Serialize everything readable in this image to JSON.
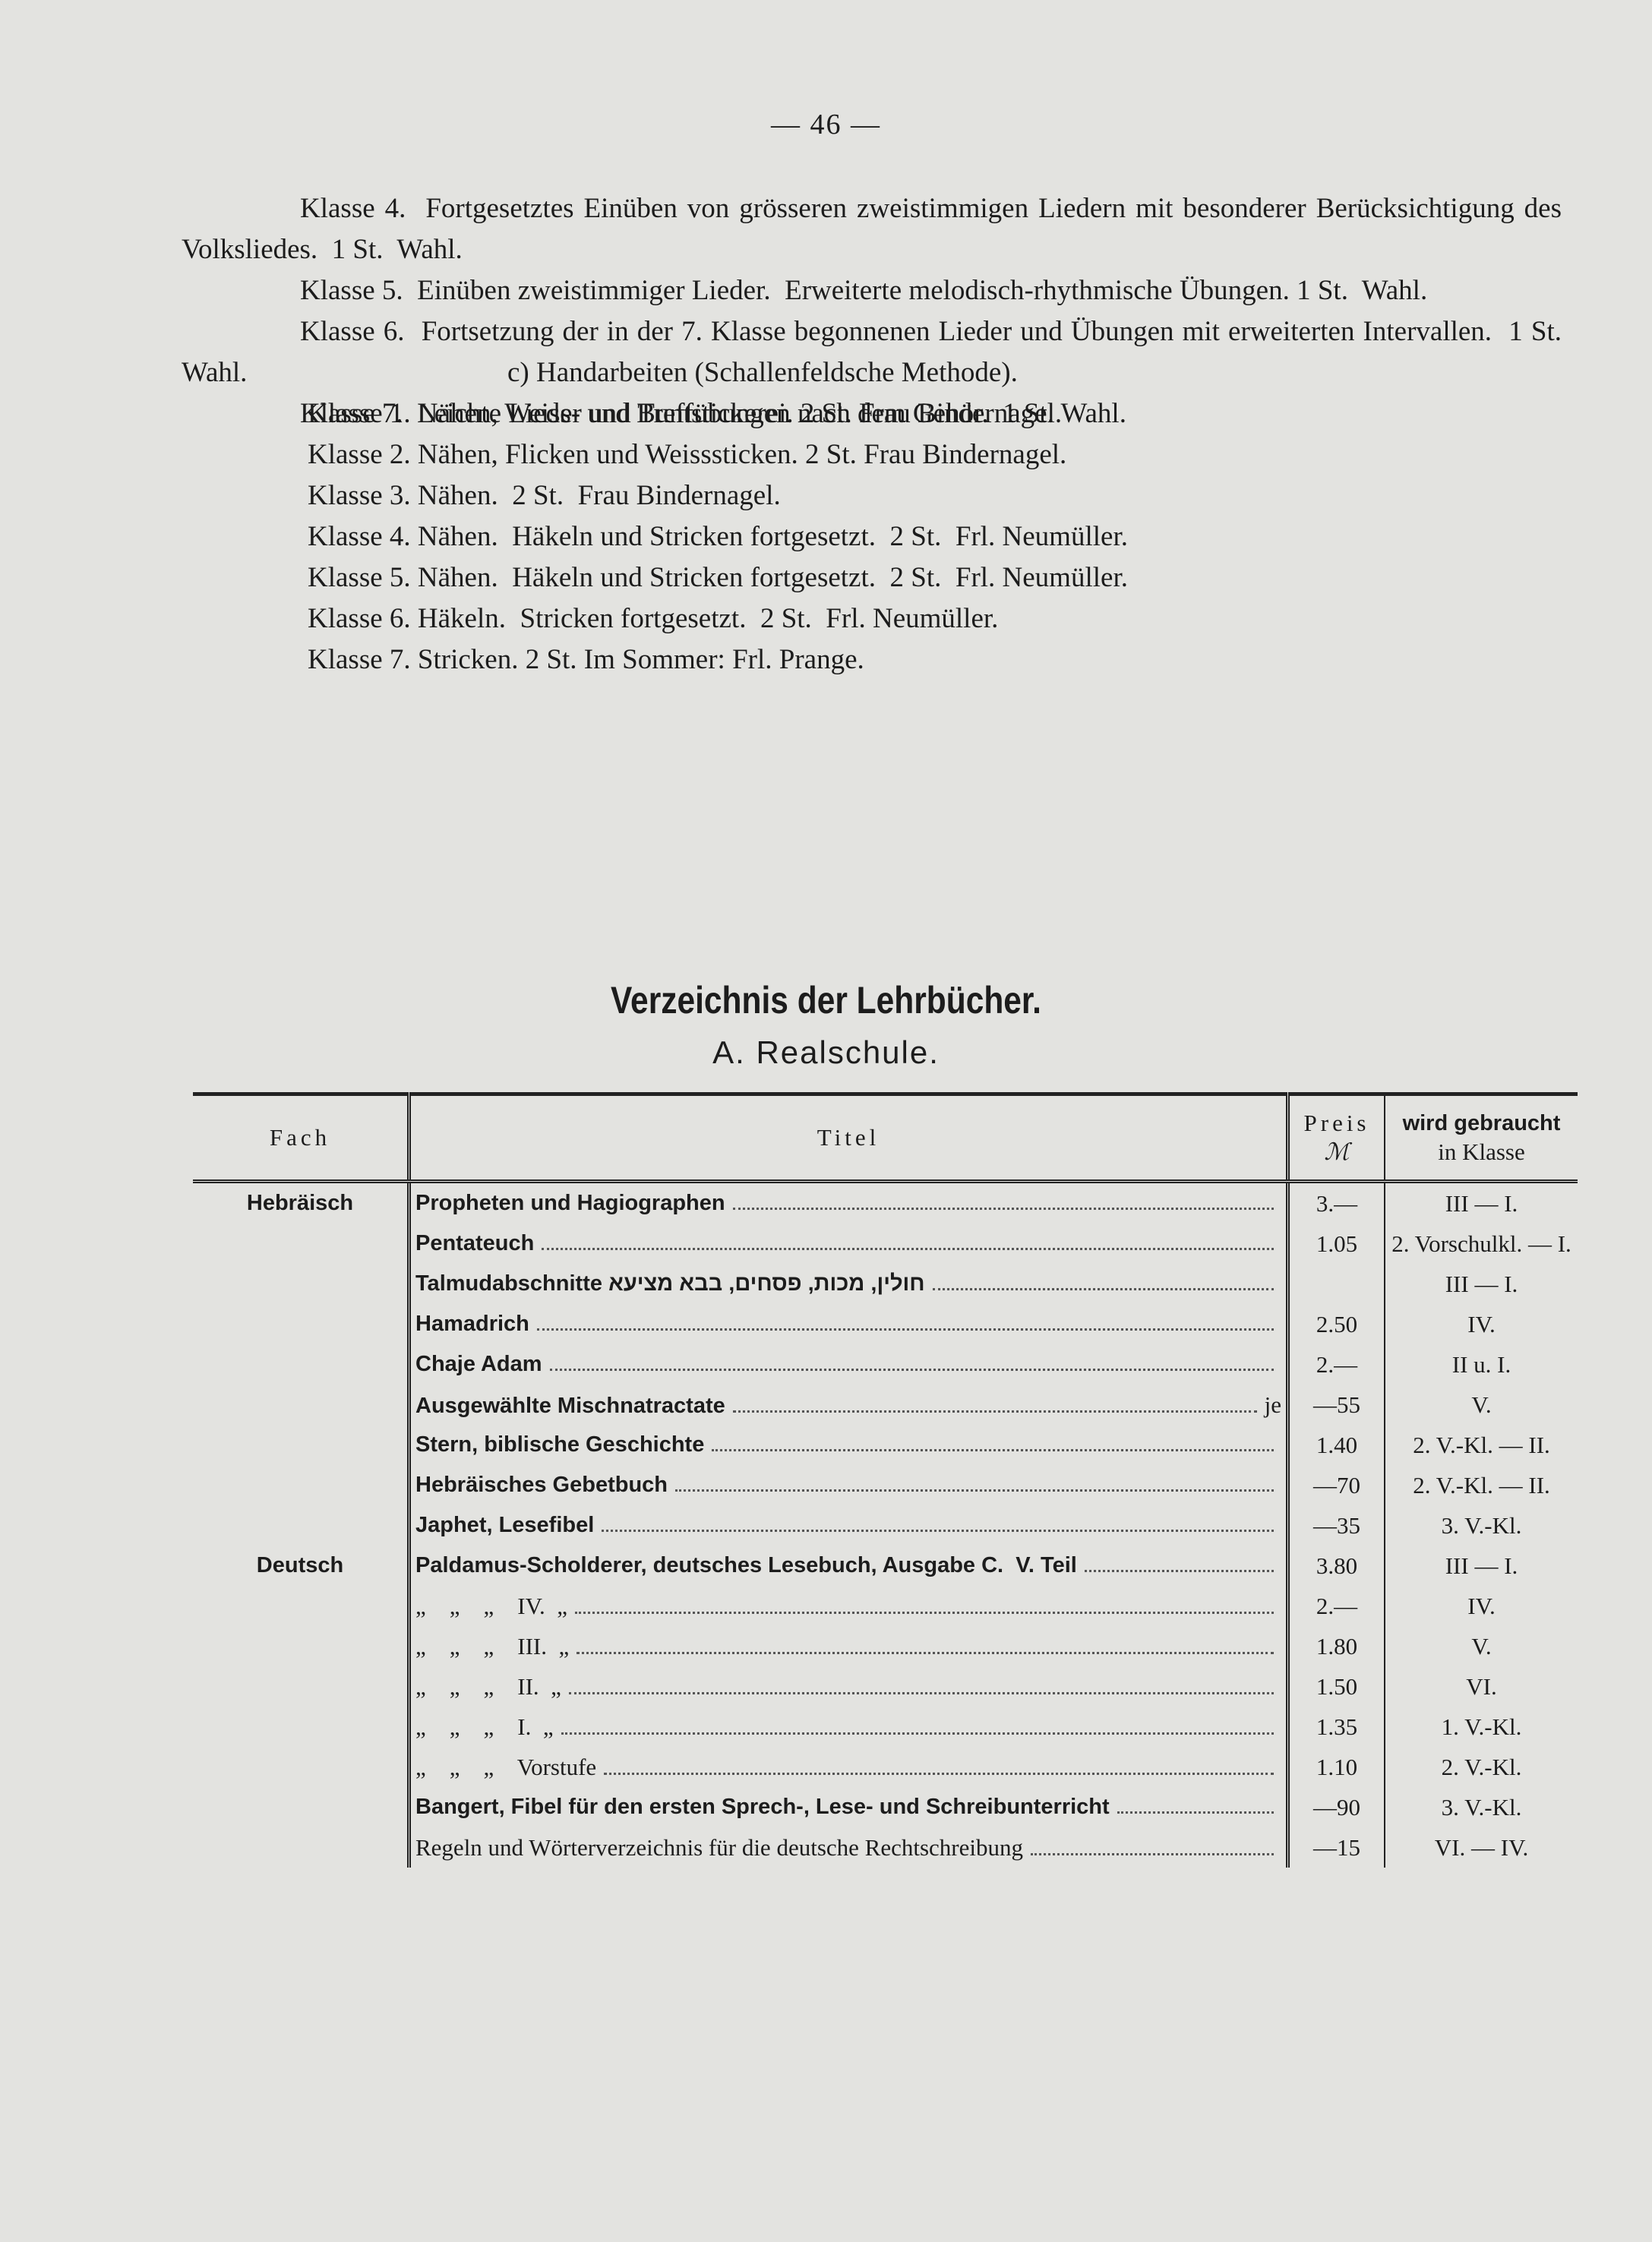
{
  "page_number": "— 46 —",
  "paragraphs": [
    "Klasse 4.  Fortgesetztes Einüben von grösseren zweistimmigen Liedern mit besonderer Berücksichtigung des Volksliedes.  1 St.  Wahl.",
    "Klasse 5.  Einüben zweistimmiger Lieder.  Erweiterte melodisch-rhythmische Übungen. 1 St.  Wahl.",
    "Klasse 6.  Fortsetzung der in der 7. Klasse begonnenen Lieder und Übungen mit erweiterten Intervallen.  1 St.  Wahl.",
    "Klasse 7.  Leichte Lieder und Treffübungen nach dem Gehör.  1 St. Wahl."
  ],
  "handarbeiten": {
    "heading": "c) Handarbeiten (Schallenfeldsche Methode).",
    "lines": [
      "Klasse 1. Nähen, Weiss- und Buntstickerei. 2 St. Frau Bindernagel.",
      "Klasse 2. Nähen, Flicken und Weisssticken. 2 St. Frau Bindernagel.",
      "Klasse 3. Nähen.  2 St.  Frau Bindernagel.",
      "Klasse 4. Nähen.  Häkeln und Stricken fortgesetzt.  2 St.  Frl. Neumüller.",
      "Klasse 5. Nähen.  Häkeln und Stricken fortgesetzt.  2 St.  Frl. Neumüller.",
      "Klasse 6. Häkeln.  Stricken fortgesetzt.  2 St.  Frl. Neumüller.",
      "Klasse 7. Stricken. 2 St. Im Sommer: Frl. Prange."
    ]
  },
  "section_title": "Verzeichnis der Lehrbücher.",
  "section_subtitle": "A. Realschule.",
  "table": {
    "header": {
      "fach": "Fach",
      "titel": "Titel",
      "preis": "Preis",
      "waehrung": "ℳ",
      "klasse": "wird gebraucht",
      "klasse_sub": "in Klasse"
    },
    "groups": [
      {
        "fach": "Hebräisch",
        "rows": [
          {
            "titel": "Propheten und Hagiographen",
            "preis": "3.—",
            "klasse": "III — I."
          },
          {
            "titel": "Pentateuch",
            "preis": "1.05",
            "klasse": "2. Vorschulkl. — I."
          },
          {
            "titel": "Talmudabschnitte חולין, מכות, פסחים, בבא מציעא",
            "preis": null,
            "klasse": "III — I."
          },
          {
            "titel": "Hamadrich",
            "preis": "2.50",
            "klasse": "IV."
          },
          {
            "titel": "Chaje Adam",
            "preis": "2.—",
            "klasse": "II u. I."
          },
          {
            "titel": "Ausgewählte Mischnatractate",
            "note": "je",
            "preis": "—55",
            "klasse": "V."
          },
          {
            "titel": "Stern, biblische Geschichte",
            "preis": "1.40",
            "klasse": "2. V.-Kl. — II."
          },
          {
            "titel": "Hebräisches Gebetbuch",
            "preis": "—70",
            "klasse": "2. V.-Kl. — II."
          },
          {
            "titel": "Japhet, Lesefibel",
            "preis": "—35",
            "klasse": "3. V.-Kl."
          }
        ]
      },
      {
        "fach": "Deutsch",
        "rows": [
          {
            "titel": "Paldamus-Scholderer, deutsches Lesebuch, Ausgabe C.  V. Teil",
            "preis": "3.80",
            "klasse": "III — I."
          },
          {
            "titel": "„    „    „    IV.  „",
            "preis": "2.—",
            "klasse": "IV."
          },
          {
            "titel": "„    „    „    III.  „",
            "preis": "1.80",
            "klasse": "V."
          },
          {
            "titel": "„    „    „    II.  „",
            "preis": "1.50",
            "klasse": "VI."
          },
          {
            "titel": "„    „    „    I.  „",
            "preis": "1.35",
            "klasse": "1. V.-Kl."
          },
          {
            "titel": "„    „    „    Vorstufe",
            "preis": "1.10",
            "klasse": "2. V.-Kl."
          },
          {
            "titel": "Bangert, Fibel für den ersten Sprech-, Lese- und Schreibunterricht",
            "preis": "—90",
            "klasse": "3. V.-Kl."
          },
          {
            "titel": "Regeln und Wörterverzeichnis für die deutsche Rechtschreibung",
            "preis": "—15",
            "klasse": "VI. — IV."
          }
        ]
      }
    ]
  }
}
